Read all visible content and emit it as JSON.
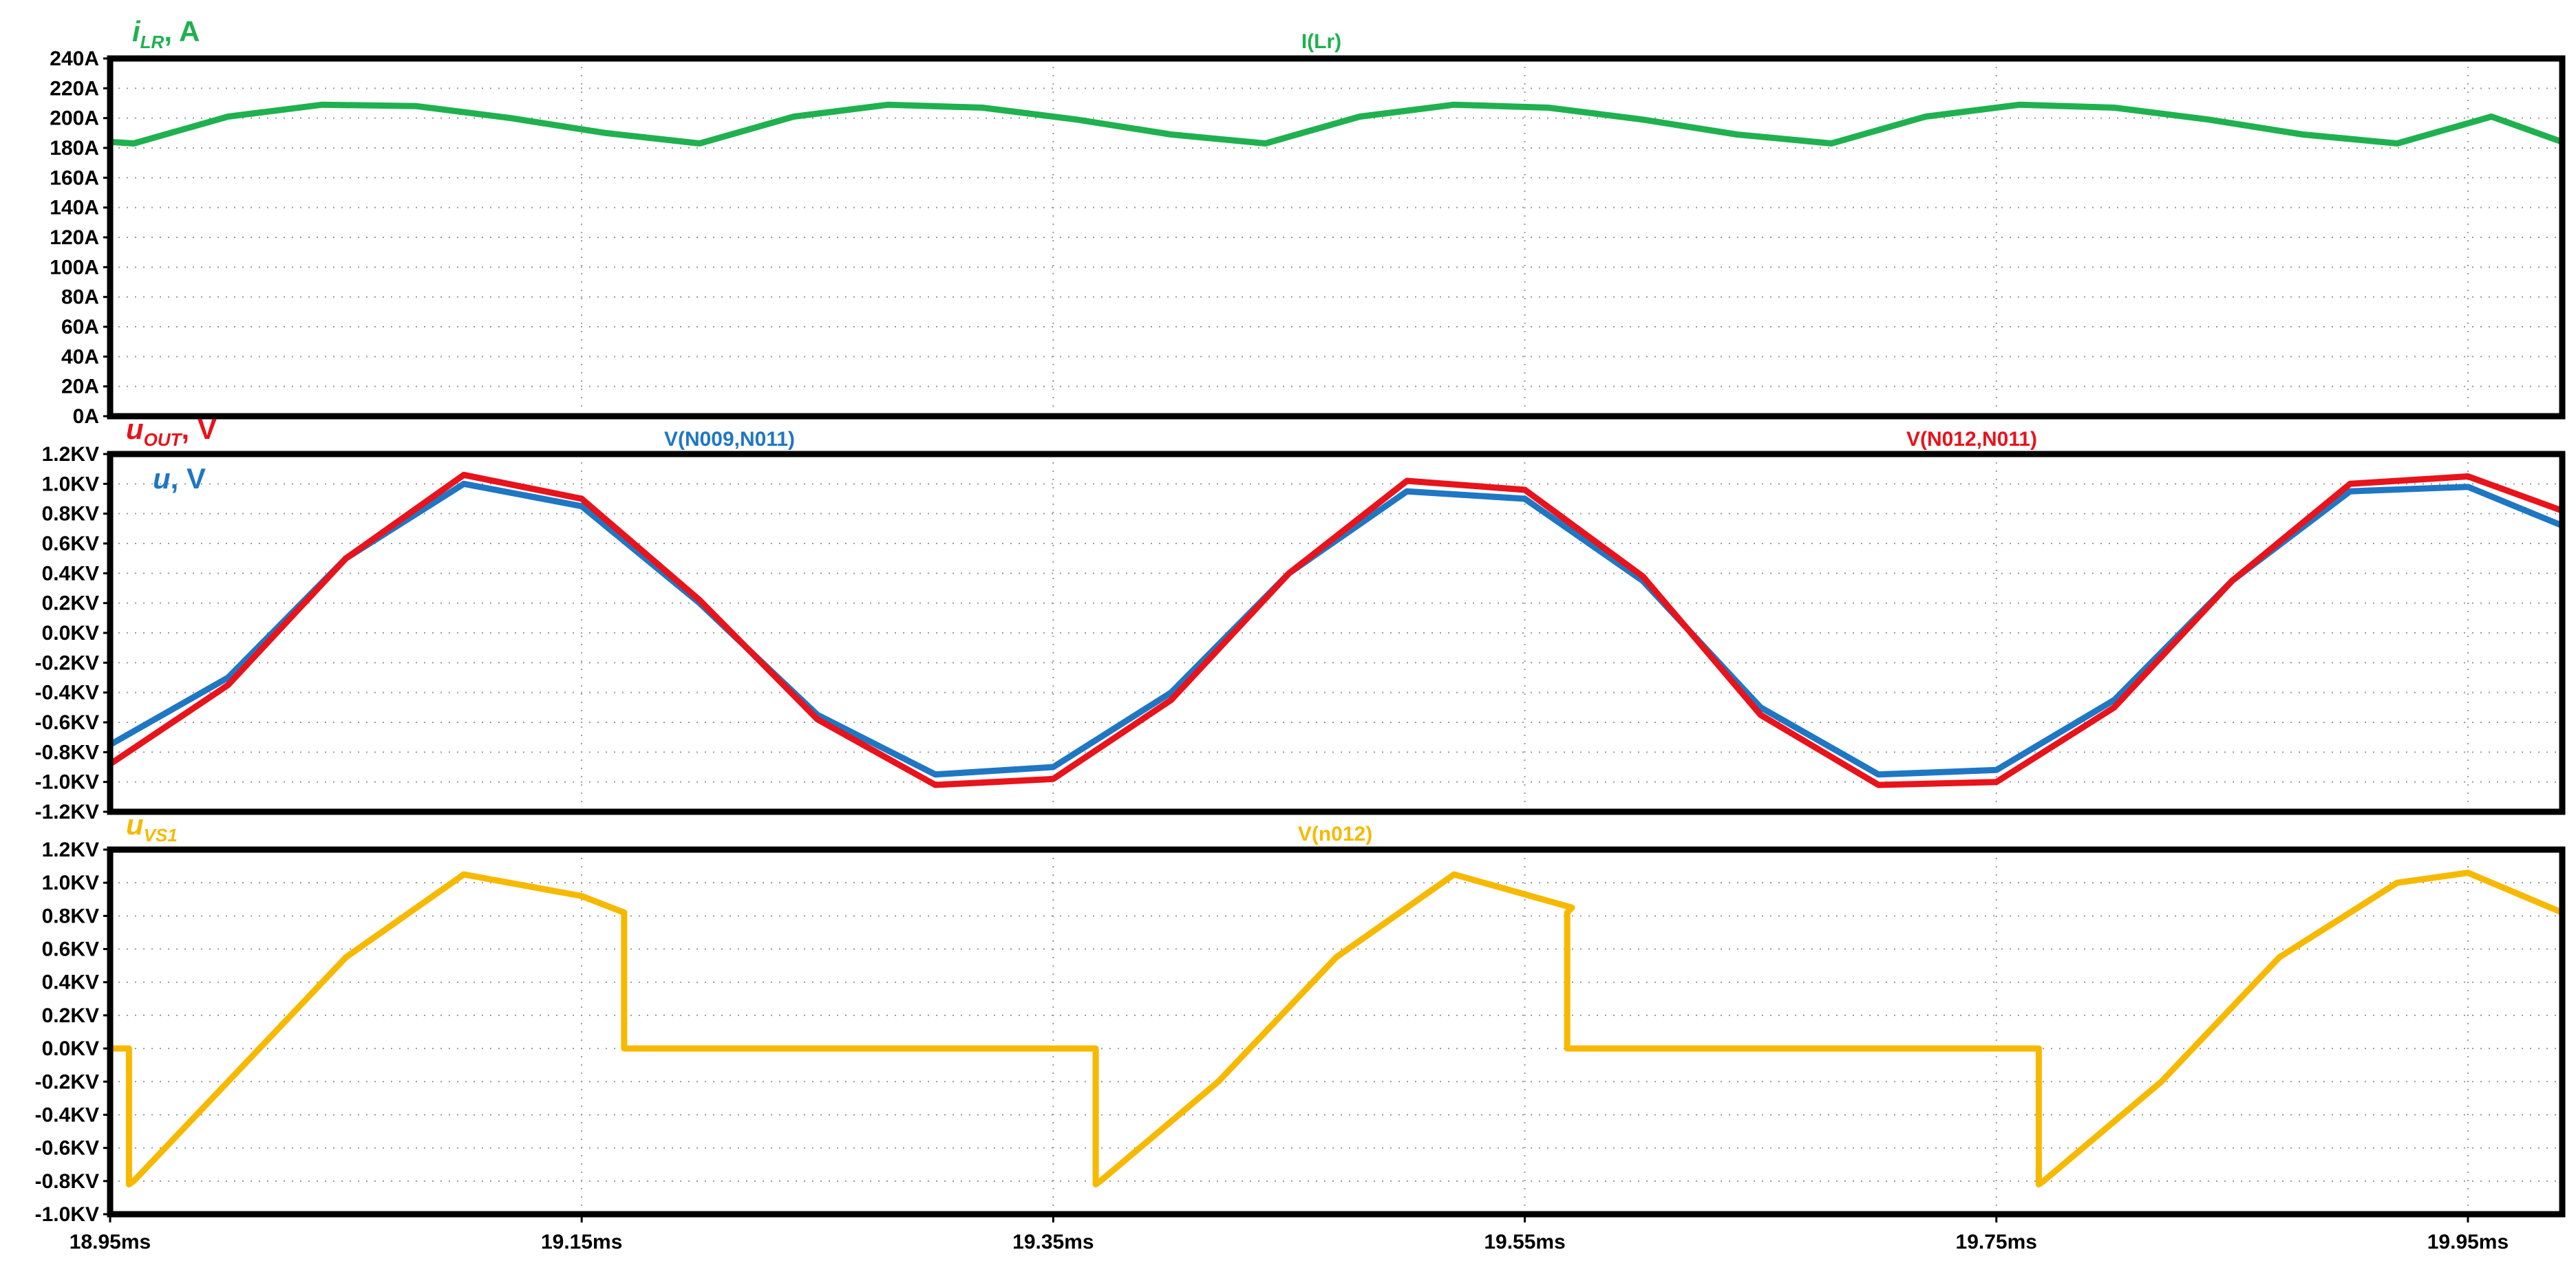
{
  "x_axis": {
    "min": 18.95,
    "max": 19.99,
    "tick_labels": [
      "18.95ms",
      "19.15ms",
      "19.35ms",
      "19.55ms",
      "19.75ms",
      "19.95ms"
    ]
  },
  "chart_data": [
    {
      "type": "line",
      "title": "I(Lr)",
      "ylabel_main": "i",
      "ylabel_sub": "LR",
      "ylabel_unit": ", A",
      "ylim": [
        0,
        240
      ],
      "y_tick_labels": [
        "240A",
        "220A",
        "200A",
        "180A",
        "160A",
        "140A",
        "120A",
        "100A",
        "80A",
        "60A",
        "40A",
        "20A",
        "0A"
      ],
      "grid": true,
      "series": [
        {
          "name": "I(Lr)",
          "color": "#1fb14f",
          "x": [
            18.95,
            18.96,
            19.0,
            19.04,
            19.08,
            19.12,
            19.16,
            19.2,
            19.24,
            19.28,
            19.32,
            19.36,
            19.4,
            19.44,
            19.48,
            19.52,
            19.56,
            19.6,
            19.64,
            19.68,
            19.72,
            19.76,
            19.8,
            19.84,
            19.88,
            19.92,
            19.96,
            19.99
          ],
          "values": [
            184,
            183,
            201,
            209,
            208,
            200,
            190,
            183,
            201,
            209,
            207,
            199,
            189,
            183,
            201,
            209,
            207,
            199,
            189,
            183,
            201,
            209,
            207,
            199,
            189,
            183,
            201,
            184
          ]
        }
      ]
    },
    {
      "type": "line",
      "legend_top_left": "V(N009,N011)",
      "legend_top_right": "V(N012,N011)",
      "label_out_main": "u",
      "label_out_sub": "OUT",
      "label_out_unit": ", V",
      "label_u_main": "u",
      "label_u_unit": ", V",
      "ylim": [
        -1.2,
        1.2
      ],
      "y_tick_labels": [
        "1.2KV",
        "1.0KV",
        "0.8KV",
        "0.6KV",
        "0.4KV",
        "0.2KV",
        "0.0KV",
        "-0.2KV",
        "-0.4KV",
        "-0.6KV",
        "-0.8KV",
        "-1.0KV",
        "-1.2KV"
      ],
      "grid": true,
      "series": [
        {
          "name": "V(N009,N011)",
          "color": "#1f77c4",
          "x": [
            18.95,
            19.0,
            19.05,
            19.1,
            19.15,
            19.2,
            19.25,
            19.3,
            19.35,
            19.4,
            19.45,
            19.5,
            19.55,
            19.6,
            19.65,
            19.7,
            19.75,
            19.8,
            19.85,
            19.9,
            19.95,
            19.99
          ],
          "values": [
            -0.75,
            -0.3,
            0.5,
            1.0,
            0.85,
            0.2,
            -0.55,
            -0.95,
            -0.9,
            -0.4,
            0.4,
            0.95,
            0.9,
            0.35,
            -0.5,
            -0.95,
            -0.92,
            -0.45,
            0.35,
            0.95,
            0.98,
            0.72
          ]
        },
        {
          "name": "V(N012,N011)",
          "color": "#e8131b",
          "x": [
            18.95,
            19.0,
            19.05,
            19.1,
            19.15,
            19.2,
            19.25,
            19.3,
            19.35,
            19.4,
            19.45,
            19.5,
            19.55,
            19.6,
            19.65,
            19.7,
            19.75,
            19.8,
            19.85,
            19.9,
            19.95,
            19.99
          ],
          "values": [
            -0.88,
            -0.35,
            0.5,
            1.06,
            0.9,
            0.22,
            -0.58,
            -1.02,
            -0.98,
            -0.45,
            0.4,
            1.02,
            0.96,
            0.38,
            -0.55,
            -1.02,
            -1.0,
            -0.5,
            0.35,
            1.0,
            1.05,
            0.82
          ]
        }
      ]
    },
    {
      "type": "line",
      "title": "V(n012)",
      "ylabel_main": "u",
      "ylabel_sub": "VS1",
      "ylim": [
        -1.0,
        1.2
      ],
      "y_tick_labels": [
        "1.2KV",
        "1.0KV",
        "0.8KV",
        "0.6KV",
        "0.4KV",
        "0.2KV",
        "0.0KV",
        "-0.2KV",
        "-0.4KV",
        "-0.6KV",
        "-0.8KV",
        "-1.0KV"
      ],
      "grid": true,
      "series": [
        {
          "name": "V(n012)",
          "color": "#f7b900",
          "x": [
            18.95,
            18.958,
            18.958,
            18.96,
            19.0,
            19.05,
            19.1,
            19.15,
            19.168,
            19.168,
            19.368,
            19.368,
            19.37,
            19.42,
            19.47,
            19.52,
            19.57,
            19.568,
            19.568,
            19.768,
            19.768,
            19.77,
            19.82,
            19.87,
            19.92,
            19.95,
            19.99
          ],
          "values": [
            0.0,
            0.0,
            -0.82,
            -0.8,
            -0.2,
            0.55,
            1.05,
            0.92,
            0.82,
            0.0,
            0.0,
            -0.82,
            -0.8,
            -0.2,
            0.55,
            1.05,
            0.85,
            0.82,
            0.0,
            0.0,
            -0.82,
            -0.8,
            -0.2,
            0.55,
            1.0,
            1.06,
            0.82
          ]
        }
      ]
    }
  ]
}
